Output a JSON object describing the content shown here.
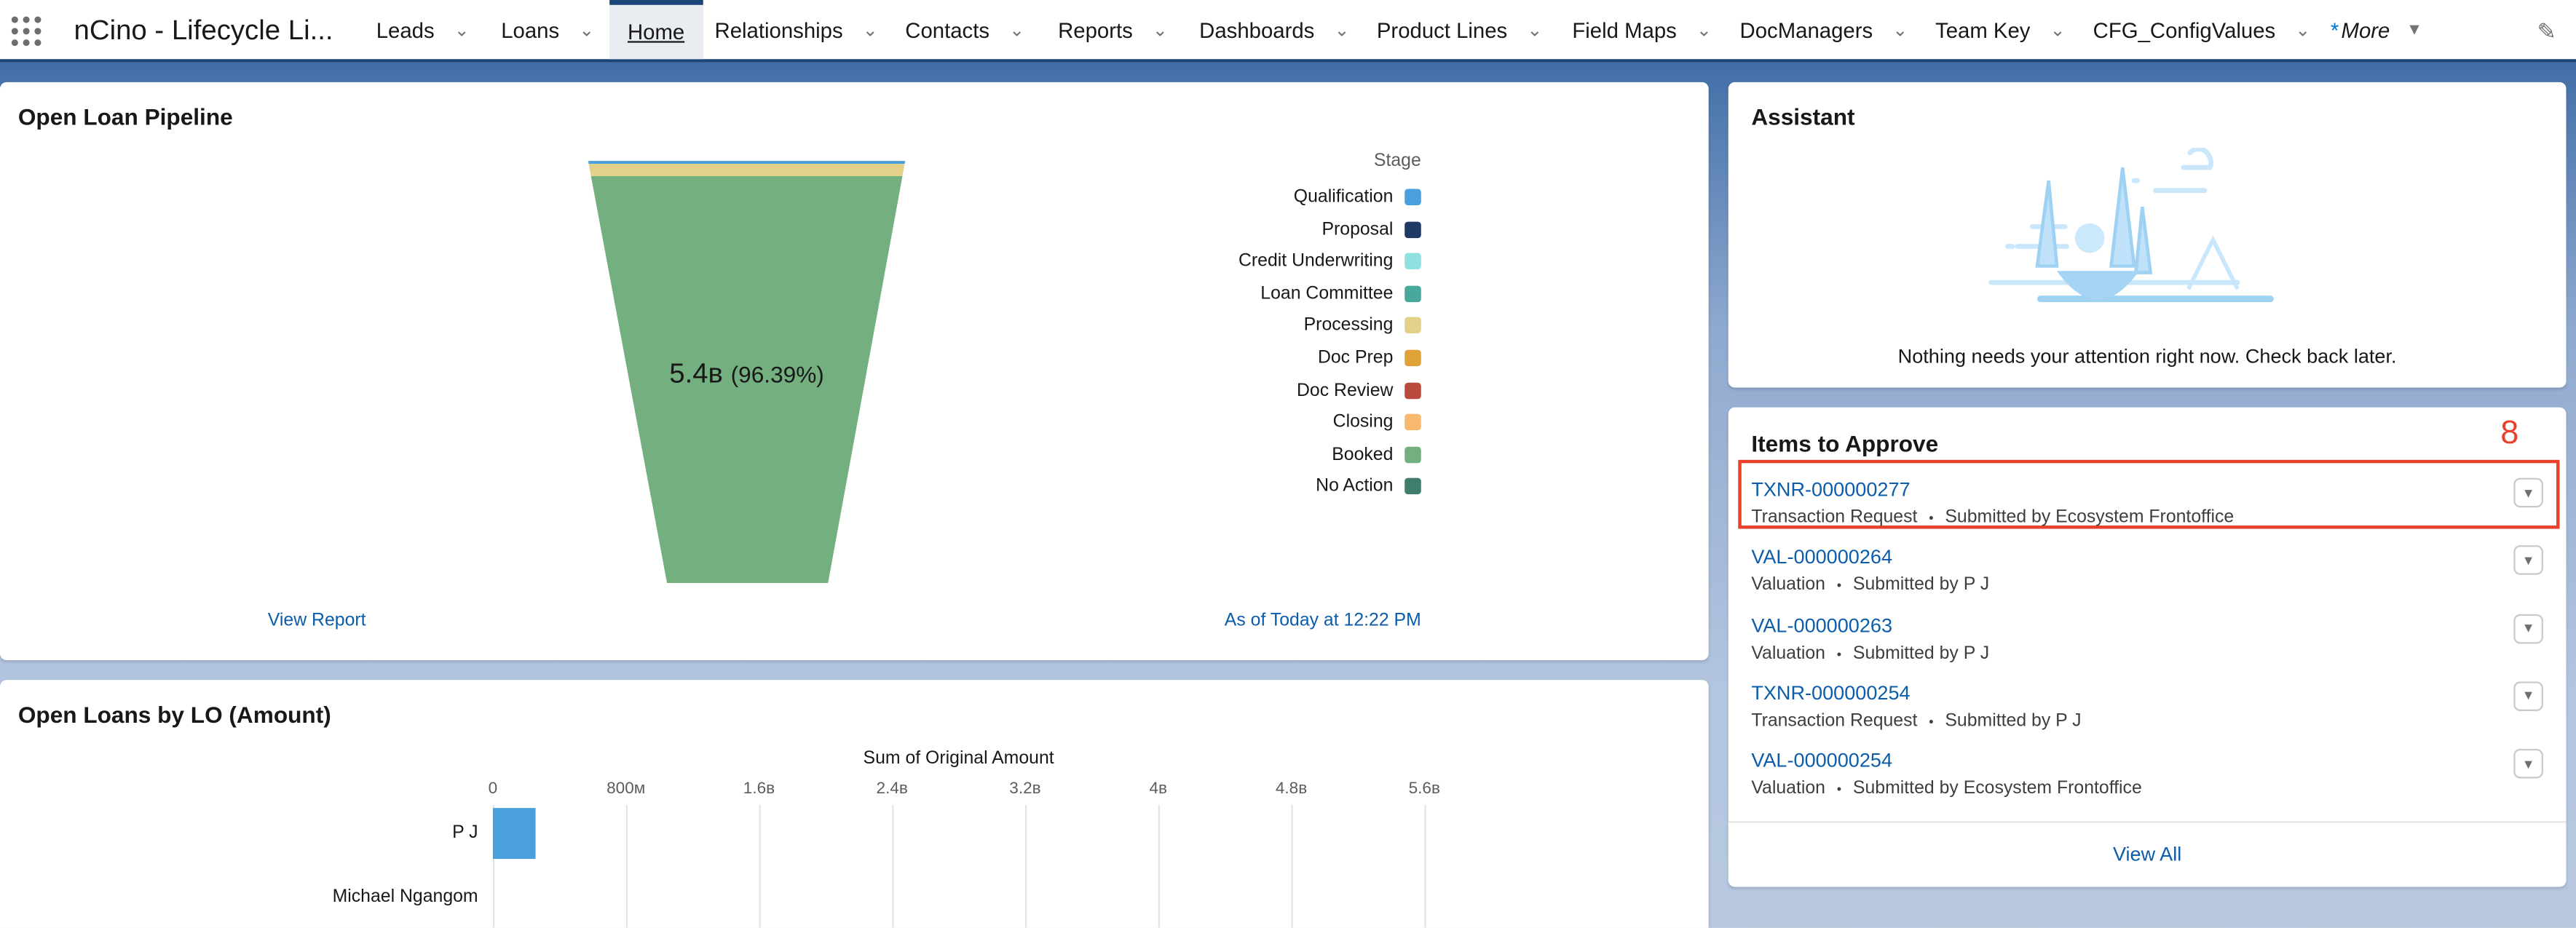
{
  "app": {
    "title": "nCino - Lifecycle Li..."
  },
  "nav": {
    "items": [
      {
        "label": "Leads",
        "dropdown": true
      },
      {
        "label": "Loans",
        "dropdown": true
      },
      {
        "label": "Home",
        "dropdown": false,
        "active": true
      },
      {
        "label": "Relationships",
        "dropdown": true
      },
      {
        "label": "Contacts",
        "dropdown": true
      },
      {
        "label": "Reports",
        "dropdown": true
      },
      {
        "label": "Dashboards",
        "dropdown": true
      },
      {
        "label": "Product Lines",
        "dropdown": true
      },
      {
        "label": "Field Maps",
        "dropdown": true
      },
      {
        "label": "DocManagers",
        "dropdown": true
      },
      {
        "label": "Team Key",
        "dropdown": true
      },
      {
        "label": "CFG_ConfigValues",
        "dropdown": true
      }
    ],
    "more_prefix": "*",
    "more_label": "More",
    "chevron": "⌄",
    "more_caret": "▼",
    "edit_icon": "✎"
  },
  "pipeline": {
    "title": "Open Loan Pipeline",
    "legend_title": "Stage",
    "center_value": "5.4B",
    "center_value_display": "5.4в",
    "center_percent": "(96.39%)",
    "view_report": "View Report",
    "as_of": "As of Today at 12:22 PM"
  },
  "chart_data": [
    {
      "type": "funnel",
      "title": "Open Loan Pipeline",
      "legend_title": "Stage",
      "legend_placement": "right",
      "categories": [
        "Qualification",
        "Proposal",
        "Credit Underwriting",
        "Loan Committee",
        "Processing",
        "Doc Prep",
        "Doc Review",
        "Closing",
        "Booked",
        "No Action"
      ],
      "colors": [
        "#4aa0dc",
        "#1f3a64",
        "#8fe0e0",
        "#48a89c",
        "#e3d18a",
        "#dfa238",
        "#b84a3e",
        "#f8b96e",
        "#74b07f",
        "#3f7d6c"
      ],
      "values_percent": [
        0.7,
        0,
        0,
        0,
        2.9,
        0,
        0,
        0,
        96.39,
        0
      ],
      "labeled": {
        "category": "Booked",
        "value": "5.4B",
        "percent": 96.39
      }
    },
    {
      "type": "bar",
      "orientation": "horizontal",
      "xlabel": "Sum of Original Amount",
      "title": "Open Loans by LO (Amount)",
      "categories": [
        "P J",
        "Michael Ngangom"
      ],
      "values": [
        260000000,
        0
      ],
      "xticks": [
        "0",
        "800M",
        "1.6B",
        "2.4B",
        "3.2B",
        "4B",
        "4.8B",
        "5.6B"
      ],
      "xlim": [
        0,
        5600000000
      ],
      "grid": true,
      "color": "#4aa0dc"
    }
  ],
  "lo_chart": {
    "title": "Open Loans by LO (Amount)",
    "xlabel": "Sum of Original Amount",
    "ticks": [
      "0",
      "800м",
      "1.6в",
      "2.4в",
      "3.2в",
      "4в",
      "4.8в",
      "5.6в"
    ],
    "rows": [
      "P J",
      "Michael Ngangom"
    ]
  },
  "assistant": {
    "title": "Assistant",
    "message": "Nothing needs your attention right now. Check back later."
  },
  "approvals": {
    "title": "Items to Approve",
    "annotation": "8",
    "view_all": "View All",
    "caret": "▼",
    "items": [
      {
        "id": "TXNR-000000277",
        "type": "Transaction Request",
        "submitted": "Submitted by Ecosystem Frontoffice",
        "highlighted": true
      },
      {
        "id": "VAL-000000264",
        "type": "Valuation",
        "submitted": "Submitted by P J"
      },
      {
        "id": "VAL-000000263",
        "type": "Valuation",
        "submitted": "Submitted by P J"
      },
      {
        "id": "TXNR-000000254",
        "type": "Transaction Request",
        "submitted": "Submitted by P J"
      },
      {
        "id": "VAL-000000254",
        "type": "Valuation",
        "submitted": "Submitted by Ecosystem Frontoffice"
      }
    ],
    "separator": "•"
  },
  "colors": {
    "brand": "#1b4578",
    "link": "#0b5cab",
    "highlight": "#e8412c"
  }
}
